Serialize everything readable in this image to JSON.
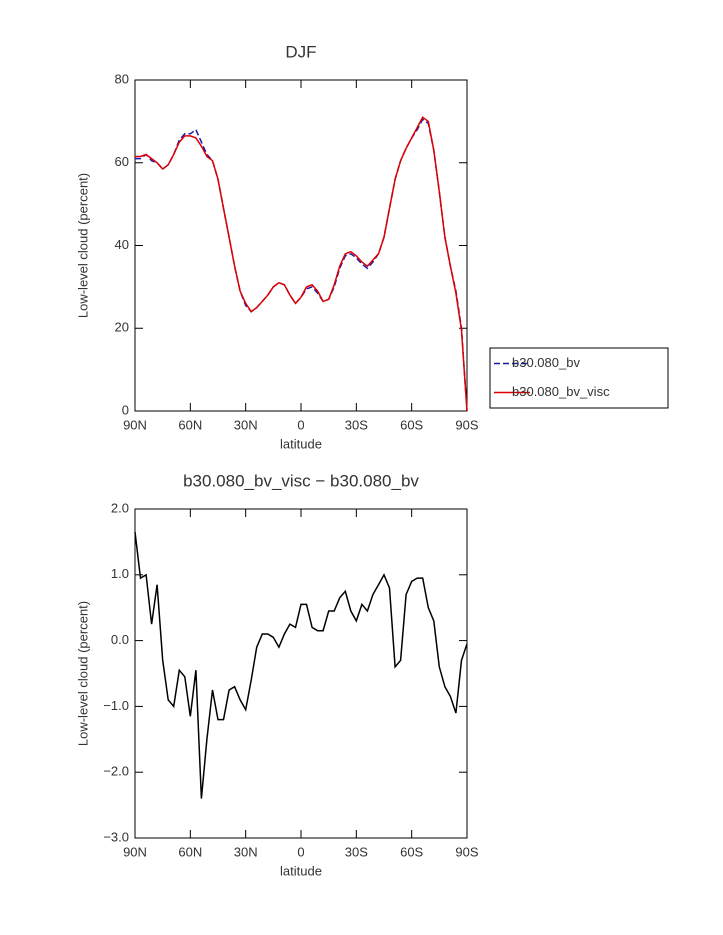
{
  "chart_data": [
    {
      "type": "line",
      "title": "DJF",
      "xlabel": "latitude",
      "ylabel": "Low-level cloud (percent)",
      "x": [
        90,
        87,
        84,
        81,
        78,
        75,
        72,
        69,
        66,
        63,
        60,
        57,
        54,
        51,
        48,
        45,
        42,
        39,
        36,
        33,
        30,
        27,
        24,
        21,
        18,
        15,
        12,
        9,
        6,
        3,
        0,
        -3,
        -6,
        -9,
        -12,
        -15,
        -18,
        -21,
        -24,
        -27,
        -30,
        -33,
        -36,
        -39,
        -42,
        -45,
        -48,
        -51,
        -54,
        -57,
        -60,
        -63,
        -66,
        -69,
        -72,
        -75,
        -78,
        -81,
        -84,
        -87,
        -90
      ],
      "series": [
        {
          "name": "b30.080_bv",
          "color": "#1a1aa8",
          "dash": true,
          "values": [
            61,
            61,
            62,
            60.5,
            60,
            58.5,
            59.5,
            62,
            65.5,
            67,
            67,
            68,
            65,
            62,
            60.5,
            56,
            49,
            42,
            35,
            29,
            25.5,
            24,
            25,
            26.5,
            28,
            30,
            31,
            30.5,
            28,
            26,
            27.5,
            29.5,
            30,
            28.5,
            26.5,
            27,
            30,
            34.5,
            37.5,
            38,
            37,
            35.5,
            34.5,
            36,
            38,
            42,
            49,
            56,
            60.5,
            63.5,
            66,
            68,
            70.5,
            69.5,
            63,
            53,
            42,
            35,
            29,
            20,
            0
          ]
        },
        {
          "name": "b30.080_bv_visc",
          "color": "#e00000",
          "dash": false,
          "values": [
            61.5,
            61.5,
            62,
            61,
            60,
            58.5,
            59.5,
            62,
            65,
            66.5,
            66.5,
            66,
            64,
            61.5,
            60.5,
            56,
            49,
            42,
            35,
            29,
            26,
            24,
            25,
            26.5,
            28,
            30,
            31,
            30.5,
            28,
            26,
            27.5,
            30,
            30.5,
            29,
            26.5,
            27,
            30.5,
            35,
            38,
            38.5,
            37.5,
            36,
            35,
            36.5,
            38,
            42,
            49,
            56,
            60.5,
            63.5,
            66,
            68.5,
            71,
            70,
            63,
            53,
            42,
            35,
            28.5,
            19.5,
            0
          ]
        }
      ],
      "xlim": [
        90,
        -90
      ],
      "xticks": [
        {
          "value": 90,
          "label": "90N"
        },
        {
          "value": 60,
          "label": "60N"
        },
        {
          "value": 30,
          "label": "30N"
        },
        0,
        {
          "value": -30,
          "label": "30S"
        },
        {
          "value": -60,
          "label": "60S"
        },
        {
          "value": -90,
          "label": "90S"
        }
      ],
      "ylim": [
        0,
        80
      ],
      "yticks": [
        0,
        20,
        40,
        60,
        80
      ],
      "legend": "right"
    },
    {
      "type": "line",
      "title": "b30.080_bv_visc − b30.080_bv",
      "xlabel": "latitude",
      "ylabel": "Low-level cloud (percent)",
      "x": [
        90,
        87,
        84,
        81,
        78,
        75,
        72,
        69,
        66,
        63,
        60,
        57,
        54,
        51,
        48,
        45,
        42,
        39,
        36,
        33,
        30,
        27,
        24,
        21,
        18,
        15,
        12,
        9,
        6,
        3,
        0,
        -3,
        -6,
        -9,
        -12,
        -15,
        -18,
        -21,
        -24,
        -27,
        -30,
        -33,
        -36,
        -39,
        -42,
        -45,
        -48,
        -51,
        -54,
        -57,
        -60,
        -63,
        -66,
        -69,
        -72,
        -75,
        -78,
        -81,
        -84,
        -87,
        -90
      ],
      "series": [
        {
          "name": "b30.080_bv_visc − b30.080_bv",
          "color": "#000000",
          "dash": false,
          "values": [
            1.65,
            0.95,
            1.0,
            0.25,
            0.85,
            -0.3,
            -0.9,
            -1.0,
            -0.45,
            -0.55,
            -1.15,
            -0.45,
            -2.4,
            -1.5,
            -0.75,
            -1.2,
            -1.2,
            -0.75,
            -0.7,
            -0.9,
            -1.05,
            -0.6,
            -0.1,
            0.1,
            0.1,
            0.05,
            -0.1,
            0.1,
            0.25,
            0.2,
            0.55,
            0.55,
            0.2,
            0.15,
            0.15,
            0.45,
            0.45,
            0.65,
            0.75,
            0.45,
            0.3,
            0.55,
            0.45,
            0.7,
            0.85,
            1.0,
            0.8,
            -0.4,
            -0.3,
            0.7,
            0.9,
            0.95,
            0.95,
            0.5,
            0.3,
            -0.4,
            -0.7,
            -0.85,
            -1.1,
            -0.3,
            -0.05
          ]
        }
      ],
      "xlim": [
        90,
        -90
      ],
      "xticks": [
        {
          "value": 90,
          "label": "90N"
        },
        {
          "value": 60,
          "label": "60N"
        },
        {
          "value": 30,
          "label": "30N"
        },
        0,
        {
          "value": -30,
          "label": "30S"
        },
        {
          "value": -60,
          "label": "60S"
        },
        {
          "value": -90,
          "label": "90S"
        }
      ],
      "ylim": [
        -3,
        2
      ],
      "yticks": [
        {
          "value": -3,
          "label": "−3.0"
        },
        {
          "value": -2,
          "label": "−2.0"
        },
        {
          "value": -1,
          "label": "−1.0"
        },
        {
          "value": 0,
          "label": "0.0"
        },
        {
          "value": 1,
          "label": "1.0"
        },
        {
          "value": 2,
          "label": "2.0"
        }
      ]
    }
  ]
}
